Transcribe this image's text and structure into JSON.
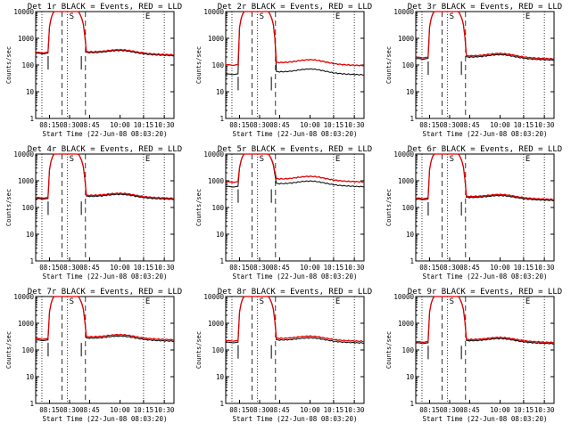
{
  "chart_data": {
    "type": "line",
    "figure": "3x3 grid of detector count-rate panels",
    "yscale": "log",
    "ylim": [
      1,
      10000
    ],
    "y_ticks": [
      "1",
      "10",
      "100",
      "1000",
      "10000"
    ],
    "ylabel": "Counts/sec",
    "xlabel": "Start Time (22-Jun-08 08:03:20)",
    "x_tick_labels": [
      "08:15",
      "08:30",
      "08:45",
      "10:00",
      "10:15",
      "10:30"
    ],
    "x_tick_positions": [
      1,
      2,
      3,
      4,
      5,
      6
    ],
    "series_colors": {
      "events": "#000000",
      "lld": "#e00000"
    },
    "marker_letters": [
      "S",
      "E"
    ],
    "panels": [
      {
        "title": "Det 1r BLACK = Events, RED = LLD",
        "events_base": 270,
        "lld_base": 290,
        "plateau_end": 240,
        "peak_level": "high",
        "flare_bump": 330
      },
      {
        "title": "Det 2r BLACK = Events, RED = LLD",
        "events_base": 45,
        "lld_base": 100,
        "plateau_end": 95,
        "peak_level": "high",
        "flare_bump": 140
      },
      {
        "title": "Det 3r BLACK = Events, RED = LLD",
        "events_base": 170,
        "lld_base": 190,
        "plateau_end": 170,
        "peak_level": "high",
        "flare_bump": 240
      },
      {
        "title": "Det 4r BLACK = Events, RED = LLD",
        "events_base": 210,
        "lld_base": 230,
        "plateau_end": 220,
        "peak_level": "high",
        "flare_bump": 300
      },
      {
        "title": "Det 5r BLACK = Events, RED = LLD",
        "events_base": 600,
        "lld_base": 900,
        "plateau_end": 900,
        "peak_level": "high",
        "flare_bump": 1300
      },
      {
        "title": "Det 6r BLACK = Events, RED = LLD",
        "events_base": 200,
        "lld_base": 220,
        "plateau_end": 200,
        "peak_level": "high",
        "flare_bump": 270
      },
      {
        "title": "Det 7r BLACK = Events, RED = LLD",
        "events_base": 230,
        "lld_base": 260,
        "plateau_end": 240,
        "peak_level": "high",
        "flare_bump": 330
      },
      {
        "title": "Det 8r BLACK = Events, RED = LLD",
        "events_base": 190,
        "lld_base": 220,
        "plateau_end": 210,
        "peak_level": "high",
        "flare_bump": 290
      },
      {
        "title": "Det 9r BLACK = Events, RED = LLD",
        "events_base": 180,
        "lld_base": 200,
        "plateau_end": 190,
        "peak_level": "high",
        "flare_bump": 260
      }
    ]
  }
}
